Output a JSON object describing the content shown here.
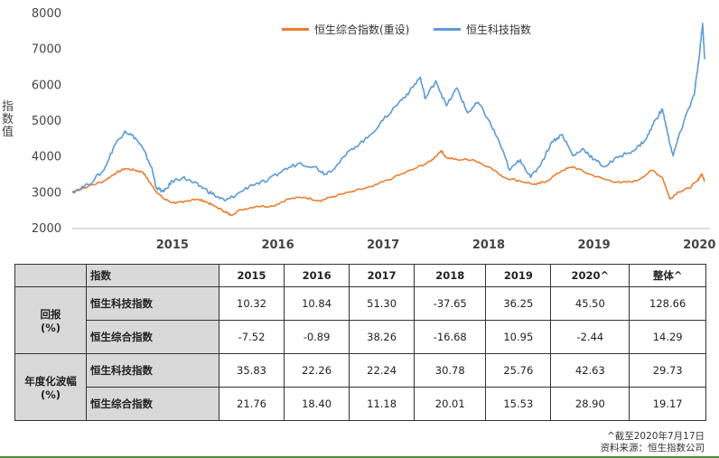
{
  "chart_data": {
    "type": "line",
    "ylabel": "指数值",
    "ylim": [
      2000,
      8000
    ],
    "yticks": [
      "2000",
      "3000",
      "4000",
      "5000",
      "6000",
      "7000",
      "8000"
    ],
    "xticks": [
      "2015",
      "2016",
      "2017",
      "2018",
      "2019",
      "2020"
    ],
    "series": [
      {
        "name": "恒生综合指数(重设)",
        "color": "#ed7d31",
        "points": [
          [
            2014.55,
            3000
          ],
          [
            2014.7,
            3150
          ],
          [
            2014.85,
            3300
          ],
          [
            2014.95,
            3500
          ],
          [
            2015.05,
            3650
          ],
          [
            2015.15,
            3600
          ],
          [
            2015.22,
            3550
          ],
          [
            2015.3,
            3200
          ],
          [
            2015.35,
            3000
          ],
          [
            2015.42,
            2800
          ],
          [
            2015.5,
            2700
          ],
          [
            2015.6,
            2700
          ],
          [
            2015.7,
            2800
          ],
          [
            2015.8,
            2750
          ],
          [
            2015.9,
            2600
          ],
          [
            2016.0,
            2450
          ],
          [
            2016.05,
            2350
          ],
          [
            2016.15,
            2500
          ],
          [
            2016.3,
            2600
          ],
          [
            2016.45,
            2600
          ],
          [
            2016.6,
            2800
          ],
          [
            2016.75,
            2850
          ],
          [
            2016.9,
            2750
          ],
          [
            2017.0,
            2850
          ],
          [
            2017.2,
            3000
          ],
          [
            2017.4,
            3150
          ],
          [
            2017.6,
            3400
          ],
          [
            2017.8,
            3650
          ],
          [
            2017.95,
            3850
          ],
          [
            2018.05,
            4150
          ],
          [
            2018.1,
            3950
          ],
          [
            2018.2,
            3900
          ],
          [
            2018.35,
            3900
          ],
          [
            2018.5,
            3700
          ],
          [
            2018.65,
            3400
          ],
          [
            2018.8,
            3300
          ],
          [
            2018.95,
            3200
          ],
          [
            2019.05,
            3300
          ],
          [
            2019.2,
            3600
          ],
          [
            2019.3,
            3700
          ],
          [
            2019.45,
            3500
          ],
          [
            2019.6,
            3350
          ],
          [
            2019.75,
            3250
          ],
          [
            2019.9,
            3300
          ],
          [
            2020.05,
            3600
          ],
          [
            2020.15,
            3400
          ],
          [
            2020.22,
            2800
          ],
          [
            2020.3,
            3000
          ],
          [
            2020.4,
            3100
          ],
          [
            2020.48,
            3300
          ],
          [
            2020.52,
            3500
          ],
          [
            2020.55,
            3300
          ]
        ]
      },
      {
        "name": "恒生科技指数",
        "color": "#5b9bd5",
        "points": [
          [
            2014.55,
            3000
          ],
          [
            2014.7,
            3200
          ],
          [
            2014.85,
            3600
          ],
          [
            2014.95,
            4300
          ],
          [
            2015.05,
            4700
          ],
          [
            2015.15,
            4500
          ],
          [
            2015.22,
            4200
          ],
          [
            2015.3,
            3700
          ],
          [
            2015.35,
            3100
          ],
          [
            2015.42,
            3000
          ],
          [
            2015.5,
            3300
          ],
          [
            2015.6,
            3400
          ],
          [
            2015.7,
            3250
          ],
          [
            2015.8,
            3100
          ],
          [
            2015.9,
            2900
          ],
          [
            2016.0,
            2750
          ],
          [
            2016.1,
            2900
          ],
          [
            2016.25,
            3200
          ],
          [
            2016.4,
            3300
          ],
          [
            2016.55,
            3600
          ],
          [
            2016.7,
            3800
          ],
          [
            2016.85,
            3700
          ],
          [
            2016.95,
            3500
          ],
          [
            2017.05,
            3700
          ],
          [
            2017.2,
            4200
          ],
          [
            2017.35,
            4500
          ],
          [
            2017.5,
            5000
          ],
          [
            2017.65,
            5500
          ],
          [
            2017.75,
            5800
          ],
          [
            2017.85,
            6200
          ],
          [
            2017.9,
            5600
          ],
          [
            2018.0,
            6100
          ],
          [
            2018.1,
            5400
          ],
          [
            2018.2,
            5900
          ],
          [
            2018.3,
            5200
          ],
          [
            2018.4,
            5500
          ],
          [
            2018.5,
            5000
          ],
          [
            2018.6,
            4400
          ],
          [
            2018.7,
            3600
          ],
          [
            2018.8,
            3900
          ],
          [
            2018.9,
            3400
          ],
          [
            2019.0,
            3800
          ],
          [
            2019.1,
            4400
          ],
          [
            2019.2,
            4600
          ],
          [
            2019.3,
            4000
          ],
          [
            2019.4,
            4200
          ],
          [
            2019.5,
            3900
          ],
          [
            2019.6,
            3700
          ],
          [
            2019.75,
            4000
          ],
          [
            2019.9,
            4200
          ],
          [
            2020.0,
            4500
          ],
          [
            2020.08,
            5000
          ],
          [
            2020.15,
            5300
          ],
          [
            2020.2,
            4600
          ],
          [
            2020.25,
            4000
          ],
          [
            2020.3,
            4500
          ],
          [
            2020.38,
            5200
          ],
          [
            2020.45,
            5700
          ],
          [
            2020.5,
            6800
          ],
          [
            2020.53,
            7700
          ],
          [
            2020.55,
            6700
          ]
        ]
      }
    ]
  },
  "table": {
    "headers": [
      "指数",
      "2015",
      "2016",
      "2017",
      "2018",
      "2019",
      "2020^",
      "整体^"
    ],
    "groups": [
      {
        "label": "回报",
        "unit": "(%)",
        "rows": [
          {
            "name": "恒生科技指数",
            "values": [
              "10.32",
              "10.84",
              "51.30",
              "-37.65",
              "36.25",
              "45.50",
              "128.66"
            ]
          },
          {
            "name": "恒生综合指数",
            "values": [
              "-7.52",
              "-0.89",
              "38.26",
              "-16.68",
              "10.95",
              "-2.44",
              "14.29"
            ]
          }
        ]
      },
      {
        "label": "年度化波幅",
        "unit": "(%)",
        "rows": [
          {
            "name": "恒生科技指数",
            "values": [
              "35.83",
              "22.26",
              "22.24",
              "30.78",
              "25.76",
              "42.63",
              "29.73"
            ]
          },
          {
            "name": "恒生综合指数",
            "values": [
              "21.76",
              "18.40",
              "11.18",
              "20.01",
              "15.53",
              "28.90",
              "19.17"
            ]
          }
        ]
      }
    ]
  },
  "notes": {
    "date_note": "^截至2020年7月17日",
    "source": "资料来源：恒生指数公司"
  }
}
